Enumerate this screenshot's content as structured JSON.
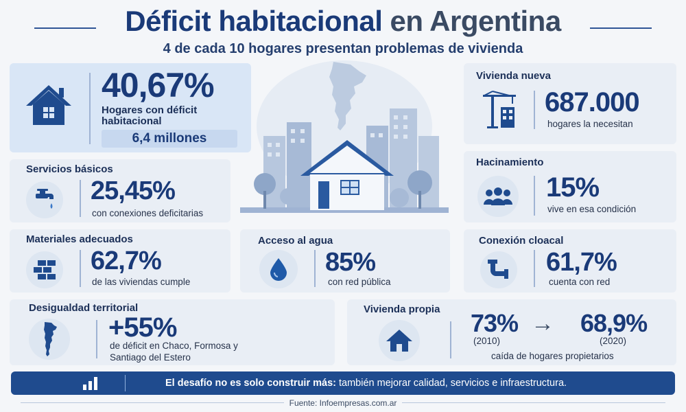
{
  "header": {
    "title_part1": "Déficit habitacional",
    "title_part2": "en Argentina",
    "subtitle": "4 de cada 10 hogares presentan problemas de vivienda"
  },
  "cards": {
    "deficit": {
      "value": "40,67%",
      "label_line1": "Hogares con déficit",
      "label_line2": "habitacional",
      "millions": "6,4 millones",
      "icon": "house-icon"
    },
    "servicios": {
      "title": "Servicios básicos",
      "value": "25,45%",
      "desc": "con conexiones deficitarias",
      "icon": "faucet-icon"
    },
    "materiales": {
      "title": "Materiales adecuados",
      "value": "62,7%",
      "desc": "de las viviendas cumple",
      "icon": "bricks-icon"
    },
    "agua": {
      "title": "Acceso al agua",
      "value": "85%",
      "desc": "con red pública",
      "icon": "water-drop-icon"
    },
    "desigualdad": {
      "title": "Desigualdad territorial",
      "value": "+55%",
      "desc_line1": "de déficit en Chaco, Formosa y",
      "desc_line2": "Santiago del Estero",
      "icon": "argentina-map-icon"
    },
    "vivienda_nueva": {
      "title": "Vivienda nueva",
      "value": "687.000",
      "desc": "hogares la necesitan",
      "icon": "crane-icon"
    },
    "hacinamiento": {
      "title": "Hacinamiento",
      "value": "15%",
      "desc": "vive en esa condición",
      "icon": "people-icon"
    },
    "cloacal": {
      "title": "Conexión cloacal",
      "value": "61,7%",
      "desc": "cuenta con red",
      "icon": "pipe-icon"
    },
    "propia": {
      "title": "Vivienda propia",
      "value_from": "73%",
      "year_from": "(2010)",
      "arrow": "→",
      "value_to": "68,9%",
      "year_to": "(2020)",
      "desc": "caída de hogares propietarios",
      "icon": "house-icon"
    }
  },
  "banner": {
    "bold": "El desafío no es solo construir más:",
    "rest": " también mejorar calidad, servicios e infraestructura.",
    "icon": "bar-chart-icon"
  },
  "source": "Fuente: Infoempresas.com.ar",
  "colors": {
    "primary": "#1a3a78",
    "banner": "#1f4b8e",
    "card_bg": "#e9eef5",
    "highlight_bg": "#d9e6f6"
  }
}
